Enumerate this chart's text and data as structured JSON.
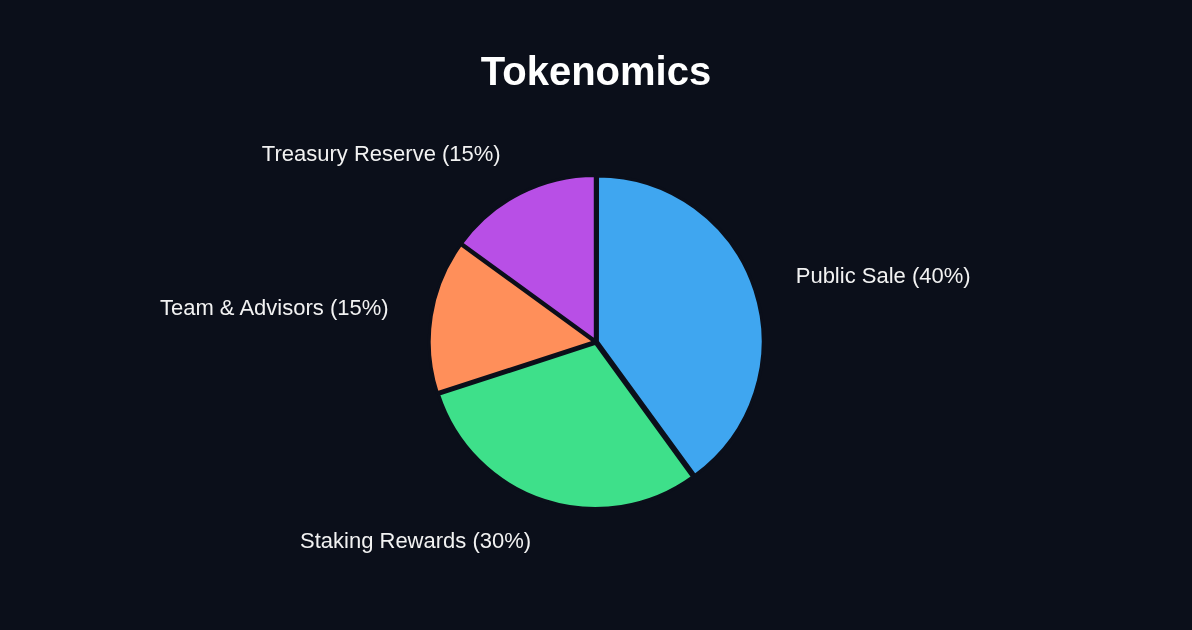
{
  "chart_data": {
    "type": "pie",
    "title": "Tokenomics",
    "categories": [
      "Public Sale (40%)",
      "Staking Rewards (30%)",
      "Team & Advisors (15%)",
      "Treasury Reserve (15%)"
    ],
    "values": [
      40,
      30,
      15,
      15
    ],
    "colors": [
      "#3fa6f0",
      "#3ee08a",
      "#ff8f5a",
      "#b84fe6"
    ]
  }
}
